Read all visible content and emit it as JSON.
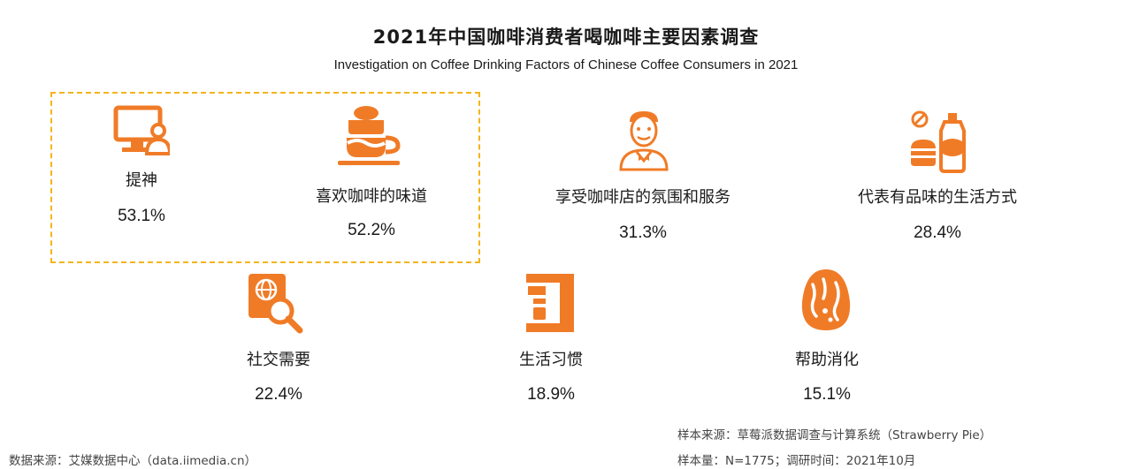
{
  "title": "2021年中国咖啡消费者喝咖啡主要因素调查",
  "subtitle": "Investigation on Coffee Drinking Factors of Chinese Coffee Consumers in 2021",
  "colors": {
    "accent": "#f07b27",
    "highlight_border": "#f3b51b"
  },
  "chart_data": {
    "type": "table",
    "title": "2021年中国咖啡消费者喝咖啡主要因素调查",
    "subtitle": "Investigation on Coffee Drinking Factors of Chinese Coffee Consumers in 2021",
    "categories": [
      "提神",
      "喜欢咖啡的味道",
      "享受咖啡店的氛围和服务",
      "代表有品味的生活方式",
      "社交需要",
      "生活习惯",
      "帮助消化"
    ],
    "values": [
      53.1,
      52.2,
      31.3,
      28.4,
      22.4,
      18.9,
      15.1
    ],
    "unit": "%",
    "highlighted": [
      "提神",
      "喜欢咖啡的味道"
    ],
    "items": [
      {
        "label": "提神",
        "value": "53.1%",
        "icon": "computer-user-icon"
      },
      {
        "label": "喜欢咖啡的味道",
        "value": "52.2%",
        "icon": "coffee-cup-icon"
      },
      {
        "label": "享受咖啡店的氛围和服务",
        "value": "31.3%",
        "icon": "waiter-icon"
      },
      {
        "label": "代表有品味的生活方式",
        "value": "28.4%",
        "icon": "burger-drink-icon"
      },
      {
        "label": "社交需要",
        "value": "22.4%",
        "icon": "globe-search-icon"
      },
      {
        "label": "生活习惯",
        "value": "18.9%",
        "icon": "coffee-machine-icon"
      },
      {
        "label": "帮助消化",
        "value": "15.1%",
        "icon": "egg-icon"
      }
    ]
  },
  "footer": {
    "data_source": "数据来源：艾媒数据中心（data.iimedia.cn）",
    "sample_source": "样本来源：草莓派数据调查与计算系统（Strawberry Pie）",
    "sample_info": "样本量：N=1775；调研时间：2021年10月"
  }
}
